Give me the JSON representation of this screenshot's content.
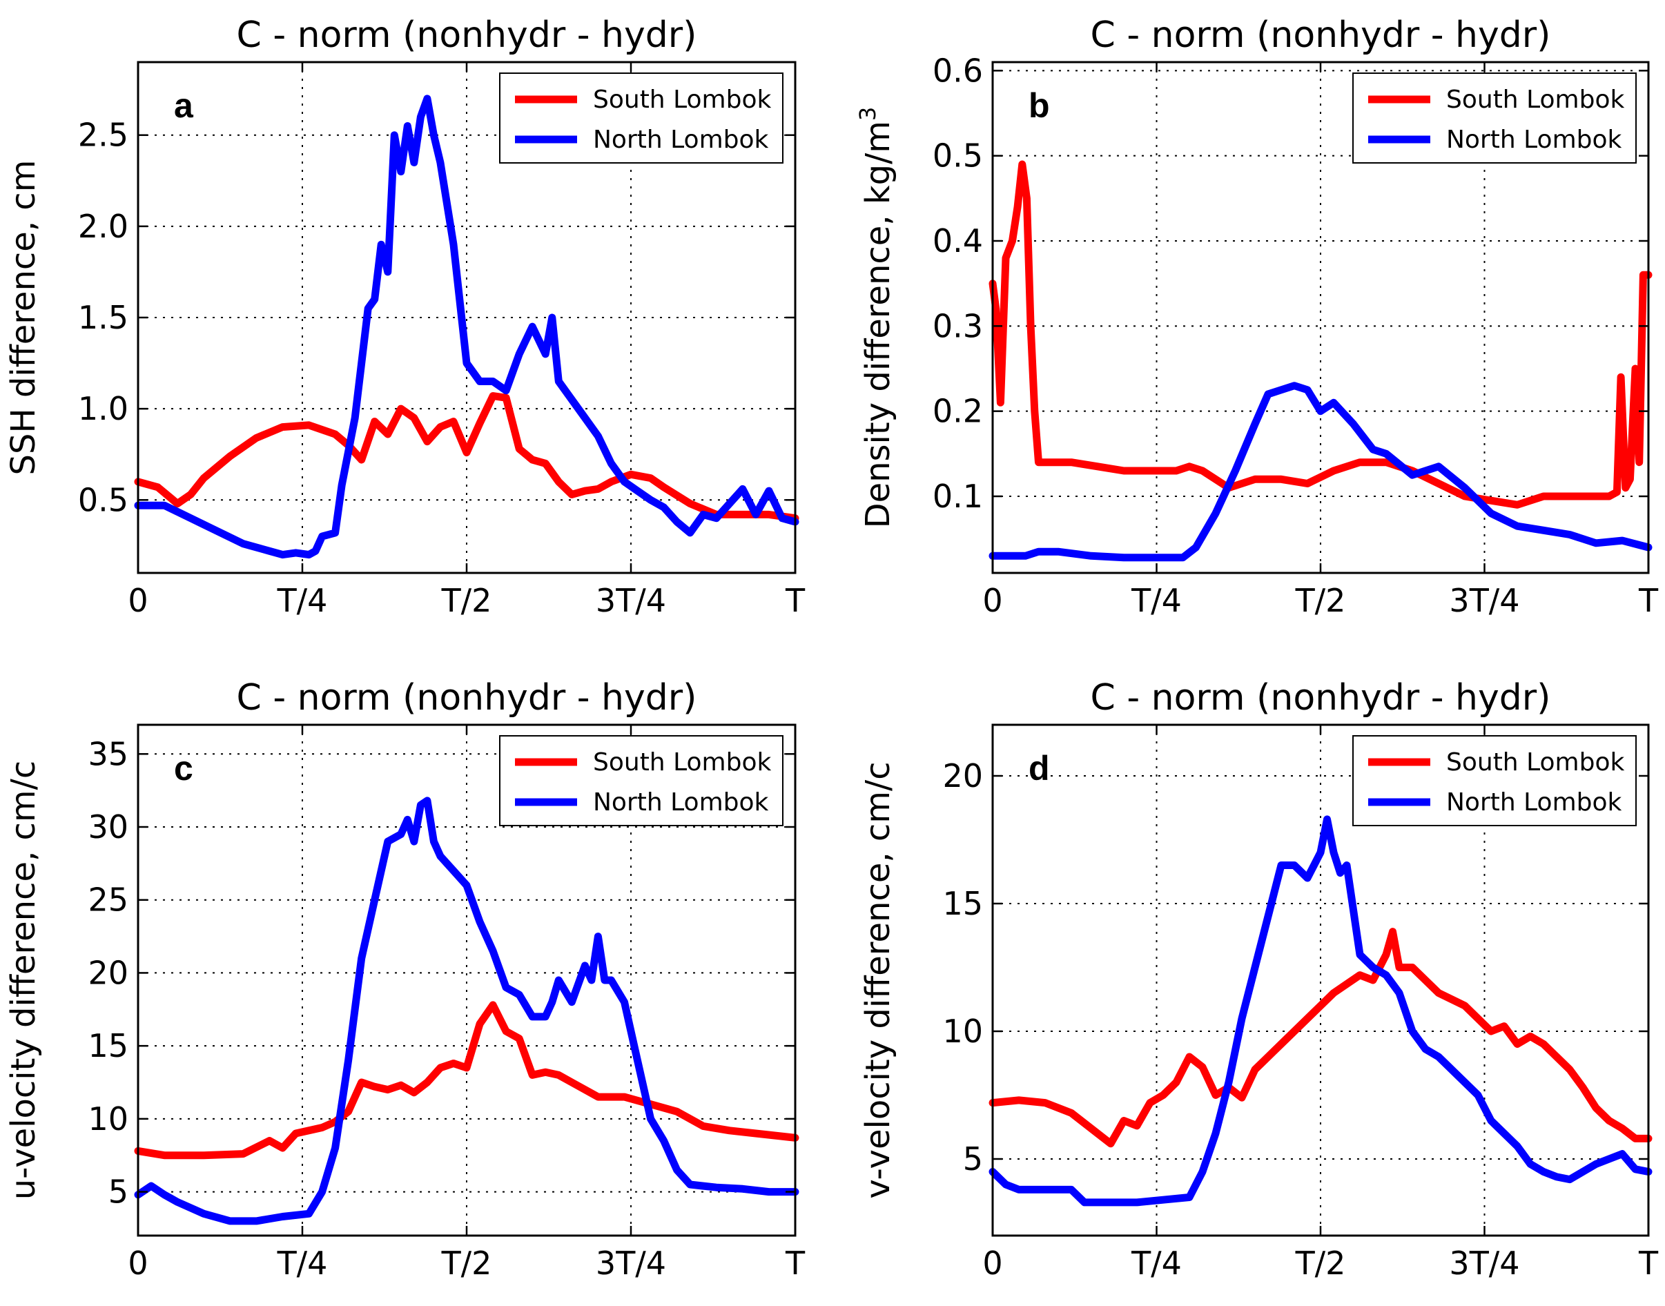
{
  "figure": {
    "colors": {
      "south": "#ff0000",
      "north": "#0000ff"
    }
  },
  "chart_data": [
    {
      "id": "a",
      "type": "line",
      "panel_letter": "a",
      "title": "C - norm (nonhydr - hydr)",
      "ylabel": "SSH difference, cm",
      "xlabel": "",
      "xlim": [
        0,
        1
      ],
      "ylim": [
        0.1,
        2.9
      ],
      "xticks": [
        0,
        0.25,
        0.5,
        0.75,
        1.0
      ],
      "xtick_labels": [
        "0",
        "T/4",
        "T/2",
        "3T/4",
        "T"
      ],
      "yticks": [
        0.5,
        1.0,
        1.5,
        2.0,
        2.5
      ],
      "ytick_labels": [
        "0.5",
        "1.0",
        "1.5",
        "2.0",
        "2.5"
      ],
      "grid": true,
      "legend": "top-right",
      "series": [
        {
          "name": "South Lombok",
          "color": "#ff0000",
          "x": [
            0,
            0.03,
            0.06,
            0.08,
            0.1,
            0.14,
            0.18,
            0.22,
            0.26,
            0.3,
            0.32,
            0.34,
            0.36,
            0.38,
            0.4,
            0.42,
            0.44,
            0.46,
            0.48,
            0.5,
            0.52,
            0.54,
            0.56,
            0.58,
            0.6,
            0.62,
            0.64,
            0.66,
            0.68,
            0.7,
            0.72,
            0.75,
            0.78,
            0.8,
            0.84,
            0.88,
            0.92,
            0.96,
            1.0
          ],
          "y": [
            0.6,
            0.57,
            0.48,
            0.53,
            0.62,
            0.74,
            0.84,
            0.9,
            0.91,
            0.86,
            0.8,
            0.72,
            0.93,
            0.86,
            1.0,
            0.95,
            0.82,
            0.9,
            0.93,
            0.76,
            0.92,
            1.07,
            1.06,
            0.78,
            0.72,
            0.7,
            0.6,
            0.53,
            0.55,
            0.56,
            0.6,
            0.64,
            0.62,
            0.57,
            0.48,
            0.42,
            0.42,
            0.42,
            0.4
          ]
        },
        {
          "name": "North Lombok",
          "color": "#0000ff",
          "x": [
            0,
            0.04,
            0.08,
            0.12,
            0.16,
            0.2,
            0.22,
            0.24,
            0.26,
            0.27,
            0.28,
            0.3,
            0.31,
            0.33,
            0.35,
            0.36,
            0.37,
            0.38,
            0.39,
            0.4,
            0.41,
            0.42,
            0.43,
            0.44,
            0.45,
            0.46,
            0.48,
            0.5,
            0.52,
            0.54,
            0.56,
            0.58,
            0.6,
            0.62,
            0.63,
            0.64,
            0.66,
            0.68,
            0.7,
            0.72,
            0.74,
            0.76,
            0.78,
            0.8,
            0.82,
            0.84,
            0.86,
            0.88,
            0.9,
            0.92,
            0.94,
            0.96,
            0.98,
            1.0
          ],
          "y": [
            0.47,
            0.47,
            0.4,
            0.33,
            0.26,
            0.22,
            0.2,
            0.21,
            0.2,
            0.22,
            0.3,
            0.32,
            0.58,
            0.95,
            1.55,
            1.6,
            1.9,
            1.75,
            2.5,
            2.3,
            2.55,
            2.35,
            2.6,
            2.7,
            2.5,
            2.35,
            1.9,
            1.25,
            1.15,
            1.15,
            1.1,
            1.3,
            1.45,
            1.3,
            1.5,
            1.15,
            1.05,
            0.95,
            0.85,
            0.7,
            0.6,
            0.55,
            0.5,
            0.46,
            0.38,
            0.32,
            0.42,
            0.4,
            0.48,
            0.56,
            0.42,
            0.55,
            0.4,
            0.38
          ]
        }
      ]
    },
    {
      "id": "b",
      "type": "line",
      "panel_letter": "b",
      "title": "C - norm (nonhydr - hydr)",
      "ylabel": "Density difference, kg/m",
      "ylabel_superscript": "3",
      "xlabel": "",
      "xlim": [
        0,
        1
      ],
      "ylim": [
        0.01,
        0.61
      ],
      "xticks": [
        0,
        0.25,
        0.5,
        0.75,
        1.0
      ],
      "xtick_labels": [
        "0",
        "T/4",
        "T/2",
        "3T/4",
        "T"
      ],
      "yticks": [
        0.1,
        0.2,
        0.3,
        0.4,
        0.5,
        0.6
      ],
      "ytick_labels": [
        "0.1",
        "0.2",
        "0.3",
        "0.4",
        "0.5",
        "0.6"
      ],
      "grid": true,
      "legend": "top-right",
      "series": [
        {
          "name": "South Lombok",
          "color": "#ff0000",
          "x": [
            0,
            0.005,
            0.012,
            0.02,
            0.03,
            0.038,
            0.045,
            0.052,
            0.058,
            0.064,
            0.07,
            0.08,
            0.12,
            0.16,
            0.2,
            0.24,
            0.28,
            0.3,
            0.32,
            0.36,
            0.4,
            0.44,
            0.48,
            0.52,
            0.56,
            0.6,
            0.64,
            0.68,
            0.72,
            0.76,
            0.8,
            0.84,
            0.88,
            0.92,
            0.94,
            0.952,
            0.958,
            0.965,
            0.972,
            0.98,
            0.986,
            0.992,
            1.0
          ],
          "y": [
            0.35,
            0.32,
            0.21,
            0.38,
            0.4,
            0.44,
            0.49,
            0.45,
            0.3,
            0.2,
            0.14,
            0.14,
            0.14,
            0.135,
            0.13,
            0.13,
            0.13,
            0.135,
            0.13,
            0.11,
            0.12,
            0.12,
            0.115,
            0.13,
            0.14,
            0.14,
            0.13,
            0.115,
            0.1,
            0.095,
            0.09,
            0.1,
            0.1,
            0.1,
            0.1,
            0.105,
            0.24,
            0.11,
            0.12,
            0.25,
            0.14,
            0.36,
            0.36
          ]
        },
        {
          "name": "North Lombok",
          "color": "#0000ff",
          "x": [
            0,
            0.05,
            0.07,
            0.1,
            0.15,
            0.2,
            0.25,
            0.29,
            0.31,
            0.34,
            0.37,
            0.4,
            0.42,
            0.44,
            0.46,
            0.48,
            0.5,
            0.52,
            0.55,
            0.58,
            0.6,
            0.64,
            0.68,
            0.72,
            0.76,
            0.8,
            0.84,
            0.88,
            0.92,
            0.96,
            1.0
          ],
          "y": [
            0.03,
            0.03,
            0.035,
            0.035,
            0.03,
            0.028,
            0.028,
            0.028,
            0.04,
            0.08,
            0.13,
            0.185,
            0.22,
            0.225,
            0.23,
            0.225,
            0.2,
            0.21,
            0.185,
            0.155,
            0.15,
            0.125,
            0.135,
            0.11,
            0.08,
            0.065,
            0.06,
            0.055,
            0.045,
            0.048,
            0.04
          ]
        }
      ]
    },
    {
      "id": "c",
      "type": "line",
      "panel_letter": "c",
      "title": "C - norm (nonhydr - hydr)",
      "ylabel": "u-velocity difference, cm/c",
      "xlabel": "",
      "xlim": [
        0,
        1
      ],
      "ylim": [
        2,
        37
      ],
      "xticks": [
        0,
        0.25,
        0.5,
        0.75,
        1.0
      ],
      "xtick_labels": [
        "0",
        "T/4",
        "T/2",
        "3T/4",
        "T"
      ],
      "yticks": [
        5,
        10,
        15,
        20,
        25,
        30,
        35
      ],
      "ytick_labels": [
        "5",
        "10",
        "15",
        "20",
        "25",
        "30",
        "35"
      ],
      "grid": true,
      "legend": "top-right",
      "series": [
        {
          "name": "South Lombok",
          "color": "#ff0000",
          "x": [
            0,
            0.04,
            0.1,
            0.16,
            0.2,
            0.22,
            0.24,
            0.28,
            0.3,
            0.32,
            0.34,
            0.36,
            0.38,
            0.4,
            0.42,
            0.44,
            0.46,
            0.48,
            0.5,
            0.52,
            0.54,
            0.56,
            0.58,
            0.6,
            0.62,
            0.64,
            0.66,
            0.7,
            0.74,
            0.78,
            0.82,
            0.86,
            0.9,
            0.94,
            1.0
          ],
          "y": [
            7.8,
            7.5,
            7.5,
            7.6,
            8.5,
            8.0,
            9.0,
            9.4,
            9.8,
            10.5,
            12.5,
            12.2,
            12.0,
            12.3,
            11.8,
            12.5,
            13.5,
            13.8,
            13.5,
            16.5,
            17.8,
            16.0,
            15.5,
            13.0,
            13.2,
            13.0,
            12.5,
            11.5,
            11.5,
            11.0,
            10.5,
            9.5,
            9.2,
            9.0,
            8.7
          ]
        },
        {
          "name": "North Lombok",
          "color": "#0000ff",
          "x": [
            0,
            0.02,
            0.04,
            0.06,
            0.1,
            0.14,
            0.18,
            0.22,
            0.26,
            0.28,
            0.3,
            0.32,
            0.34,
            0.36,
            0.38,
            0.4,
            0.41,
            0.42,
            0.43,
            0.44,
            0.45,
            0.46,
            0.48,
            0.5,
            0.52,
            0.54,
            0.56,
            0.58,
            0.6,
            0.62,
            0.63,
            0.64,
            0.66,
            0.68,
            0.69,
            0.7,
            0.71,
            0.72,
            0.74,
            0.76,
            0.78,
            0.8,
            0.82,
            0.84,
            0.88,
            0.92,
            0.96,
            1.0
          ],
          "y": [
            4.8,
            5.4,
            4.8,
            4.3,
            3.5,
            3.0,
            3.0,
            3.3,
            3.5,
            5.0,
            8.0,
            14.0,
            21.0,
            25.0,
            29.0,
            29.5,
            30.5,
            29.0,
            31.5,
            31.8,
            29.0,
            28.0,
            27.0,
            26.0,
            23.5,
            21.5,
            19.0,
            18.5,
            17.0,
            17.0,
            18.0,
            19.5,
            18.0,
            20.5,
            19.5,
            22.5,
            19.5,
            19.5,
            18.0,
            14.0,
            10.0,
            8.5,
            6.5,
            5.5,
            5.3,
            5.2,
            5.0,
            5.0
          ]
        }
      ]
    },
    {
      "id": "d",
      "type": "line",
      "panel_letter": "d",
      "title": "C - norm (nonhydr - hydr)",
      "ylabel": "v-velocity difference, cm/c",
      "xlabel": "",
      "xlim": [
        0,
        1
      ],
      "ylim": [
        2,
        22
      ],
      "xticks": [
        0,
        0.25,
        0.5,
        0.75,
        1.0
      ],
      "xtick_labels": [
        "0",
        "T/4",
        "T/2",
        "3T/4",
        "T"
      ],
      "yticks": [
        5,
        10,
        15,
        20
      ],
      "ytick_labels": [
        "5",
        "10",
        "15",
        "20"
      ],
      "grid": true,
      "legend": "top-right",
      "series": [
        {
          "name": "South Lombok",
          "color": "#ff0000",
          "x": [
            0,
            0.04,
            0.08,
            0.12,
            0.16,
            0.18,
            0.2,
            0.22,
            0.24,
            0.26,
            0.28,
            0.3,
            0.32,
            0.34,
            0.36,
            0.38,
            0.4,
            0.44,
            0.48,
            0.52,
            0.56,
            0.58,
            0.6,
            0.61,
            0.62,
            0.64,
            0.66,
            0.68,
            0.72,
            0.76,
            0.78,
            0.8,
            0.82,
            0.84,
            0.86,
            0.88,
            0.9,
            0.92,
            0.94,
            0.96,
            0.98,
            1.0
          ],
          "y": [
            7.2,
            7.3,
            7.2,
            6.8,
            6.0,
            5.6,
            6.5,
            6.3,
            7.2,
            7.5,
            8.0,
            9.0,
            8.6,
            7.5,
            7.8,
            7.4,
            8.5,
            9.5,
            10.5,
            11.5,
            12.2,
            12.0,
            13.0,
            13.9,
            12.5,
            12.5,
            12.0,
            11.5,
            11.0,
            10.0,
            10.2,
            9.5,
            9.8,
            9.5,
            9.0,
            8.5,
            7.8,
            7.0,
            6.5,
            6.2,
            5.8,
            5.8
          ]
        },
        {
          "name": "North Lombok",
          "color": "#0000ff",
          "x": [
            0,
            0.02,
            0.04,
            0.08,
            0.12,
            0.14,
            0.18,
            0.22,
            0.26,
            0.3,
            0.32,
            0.34,
            0.36,
            0.38,
            0.4,
            0.42,
            0.43,
            0.44,
            0.46,
            0.48,
            0.5,
            0.51,
            0.52,
            0.53,
            0.54,
            0.56,
            0.58,
            0.6,
            0.62,
            0.64,
            0.66,
            0.68,
            0.7,
            0.72,
            0.74,
            0.76,
            0.78,
            0.8,
            0.82,
            0.84,
            0.86,
            0.88,
            0.9,
            0.92,
            0.94,
            0.96,
            0.98,
            1.0
          ],
          "y": [
            4.5,
            4.0,
            3.8,
            3.8,
            3.8,
            3.3,
            3.3,
            3.3,
            3.4,
            3.5,
            4.5,
            6.0,
            8.0,
            10.5,
            12.5,
            14.5,
            15.5,
            16.5,
            16.5,
            16.0,
            17.0,
            18.3,
            17.0,
            16.2,
            16.5,
            13.0,
            12.5,
            12.2,
            11.5,
            10.0,
            9.3,
            9.0,
            8.5,
            8.0,
            7.5,
            6.5,
            6.0,
            5.5,
            4.8,
            4.5,
            4.3,
            4.2,
            4.5,
            4.8,
            5.0,
            5.2,
            4.6,
            4.5
          ]
        }
      ]
    }
  ]
}
